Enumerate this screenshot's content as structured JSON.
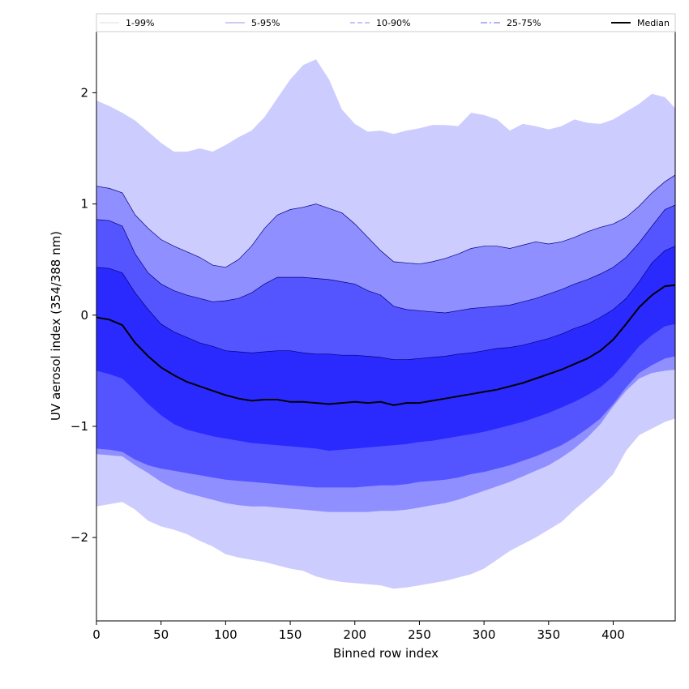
{
  "chart_data": {
    "type": "area",
    "xlabel": "Binned row index",
    "ylabel": "UV aerosol index (354/388 nm)",
    "xlim": [
      0,
      448
    ],
    "ylim": [
      -2.75,
      2.55
    ],
    "xticks": [
      0,
      50,
      100,
      150,
      200,
      250,
      300,
      350,
      400
    ],
    "yticks": [
      -2,
      -1,
      0,
      1,
      2
    ],
    "ytick_labels": [
      "−2",
      "−1",
      "0",
      "1",
      "2"
    ],
    "grid": false,
    "legend_placement": "top",
    "x": [
      0,
      10,
      20,
      30,
      40,
      50,
      60,
      70,
      80,
      90,
      100,
      110,
      120,
      130,
      140,
      150,
      160,
      170,
      180,
      190,
      200,
      210,
      220,
      230,
      240,
      250,
      260,
      270,
      280,
      290,
      300,
      310,
      320,
      330,
      340,
      350,
      360,
      370,
      380,
      390,
      400,
      410,
      420,
      430,
      440,
      448
    ],
    "bands": [
      {
        "name": "1-99%",
        "fill": "#ccccff",
        "line_color": "#ccccff",
        "line_style": "solid",
        "upper": [
          1.93,
          1.88,
          1.82,
          1.75,
          1.65,
          1.55,
          1.47,
          1.47,
          1.5,
          1.47,
          1.53,
          1.6,
          1.66,
          1.78,
          1.95,
          2.12,
          2.25,
          2.3,
          2.12,
          1.85,
          1.72,
          1.65,
          1.66,
          1.63,
          1.66,
          1.68,
          1.71,
          1.71,
          1.7,
          1.82,
          1.8,
          1.76,
          1.66,
          1.72,
          1.7,
          1.67,
          1.7,
          1.76,
          1.73,
          1.72,
          1.76,
          1.83,
          1.9,
          1.99,
          1.96,
          1.86
        ],
        "lower": [
          -1.72,
          -1.7,
          -1.68,
          -1.75,
          -1.85,
          -1.9,
          -1.93,
          -1.97,
          -2.03,
          -2.08,
          -2.15,
          -2.18,
          -2.2,
          -2.22,
          -2.25,
          -2.28,
          -2.3,
          -2.35,
          -2.38,
          -2.4,
          -2.41,
          -2.42,
          -2.43,
          -2.46,
          -2.45,
          -2.43,
          -2.41,
          -2.39,
          -2.36,
          -2.33,
          -2.28,
          -2.2,
          -2.12,
          -2.06,
          -2.0,
          -1.93,
          -1.86,
          -1.75,
          -1.65,
          -1.55,
          -1.43,
          -1.22,
          -1.08,
          -1.02,
          -0.96,
          -0.93
        ]
      },
      {
        "name": "5-95%",
        "fill": "#8f8fff",
        "line_color": "#000080",
        "line_style": "solid",
        "upper": [
          1.16,
          1.14,
          1.1,
          0.9,
          0.78,
          0.68,
          0.62,
          0.57,
          0.52,
          0.45,
          0.43,
          0.5,
          0.62,
          0.78,
          0.9,
          0.95,
          0.97,
          1.0,
          0.96,
          0.92,
          0.82,
          0.7,
          0.58,
          0.48,
          0.47,
          0.46,
          0.48,
          0.51,
          0.55,
          0.6,
          0.62,
          0.62,
          0.6,
          0.63,
          0.66,
          0.64,
          0.66,
          0.7,
          0.75,
          0.79,
          0.82,
          0.88,
          0.98,
          1.1,
          1.2,
          1.26
        ],
        "lower": [
          -1.25,
          -1.26,
          -1.27,
          -1.35,
          -1.42,
          -1.5,
          -1.56,
          -1.6,
          -1.63,
          -1.66,
          -1.69,
          -1.71,
          -1.72,
          -1.72,
          -1.73,
          -1.74,
          -1.75,
          -1.76,
          -1.77,
          -1.77,
          -1.77,
          -1.77,
          -1.76,
          -1.76,
          -1.75,
          -1.73,
          -1.71,
          -1.69,
          -1.66,
          -1.62,
          -1.58,
          -1.54,
          -1.5,
          -1.45,
          -1.4,
          -1.35,
          -1.28,
          -1.2,
          -1.1,
          -0.98,
          -0.82,
          -0.68,
          -0.57,
          -0.52,
          -0.5,
          -0.49
        ]
      },
      {
        "name": "10-90%",
        "fill": "#5555ff",
        "line_color": "#000080",
        "line_style": "dashed",
        "upper": [
          0.86,
          0.85,
          0.8,
          0.55,
          0.38,
          0.28,
          0.22,
          0.18,
          0.15,
          0.12,
          0.13,
          0.15,
          0.2,
          0.28,
          0.34,
          0.34,
          0.34,
          0.33,
          0.32,
          0.3,
          0.28,
          0.22,
          0.18,
          0.08,
          0.05,
          0.04,
          0.03,
          0.02,
          0.04,
          0.06,
          0.07,
          0.08,
          0.09,
          0.12,
          0.15,
          0.19,
          0.23,
          0.28,
          0.32,
          0.37,
          0.43,
          0.52,
          0.65,
          0.8,
          0.95,
          0.99
        ],
        "lower": [
          -1.2,
          -1.21,
          -1.23,
          -1.3,
          -1.35,
          -1.38,
          -1.4,
          -1.42,
          -1.44,
          -1.46,
          -1.48,
          -1.49,
          -1.5,
          -1.51,
          -1.52,
          -1.53,
          -1.54,
          -1.55,
          -1.55,
          -1.55,
          -1.55,
          -1.54,
          -1.53,
          -1.53,
          -1.52,
          -1.5,
          -1.49,
          -1.48,
          -1.46,
          -1.43,
          -1.41,
          -1.38,
          -1.35,
          -1.31,
          -1.27,
          -1.22,
          -1.17,
          -1.1,
          -1.02,
          -0.93,
          -0.8,
          -0.65,
          -0.52,
          -0.45,
          -0.39,
          -0.37
        ]
      },
      {
        "name": "25-75%",
        "fill": "#2a2aff",
        "line_color": "#000080",
        "line_style": "dashdot",
        "upper": [
          0.43,
          0.42,
          0.38,
          0.2,
          0.05,
          -0.08,
          -0.15,
          -0.2,
          -0.25,
          -0.28,
          -0.32,
          -0.33,
          -0.34,
          -0.33,
          -0.32,
          -0.32,
          -0.34,
          -0.35,
          -0.35,
          -0.36,
          -0.36,
          -0.37,
          -0.38,
          -0.4,
          -0.4,
          -0.39,
          -0.38,
          -0.37,
          -0.35,
          -0.34,
          -0.32,
          -0.3,
          -0.29,
          -0.27,
          -0.24,
          -0.21,
          -0.17,
          -0.12,
          -0.08,
          -0.02,
          0.05,
          0.15,
          0.3,
          0.47,
          0.58,
          0.62
        ],
        "lower": [
          -0.5,
          -0.53,
          -0.57,
          -0.68,
          -0.8,
          -0.9,
          -0.98,
          -1.03,
          -1.06,
          -1.09,
          -1.11,
          -1.13,
          -1.15,
          -1.16,
          -1.17,
          -1.18,
          -1.19,
          -1.2,
          -1.22,
          -1.21,
          -1.2,
          -1.19,
          -1.18,
          -1.17,
          -1.16,
          -1.14,
          -1.13,
          -1.11,
          -1.09,
          -1.07,
          -1.05,
          -1.02,
          -0.99,
          -0.96,
          -0.92,
          -0.88,
          -0.83,
          -0.78,
          -0.72,
          -0.65,
          -0.55,
          -0.42,
          -0.28,
          -0.18,
          -0.1,
          -0.08
        ]
      }
    ],
    "median": {
      "name": "Median",
      "color": "#000000",
      "values": [
        -0.02,
        -0.04,
        -0.09,
        -0.25,
        -0.37,
        -0.47,
        -0.54,
        -0.6,
        -0.64,
        -0.68,
        -0.72,
        -0.75,
        -0.77,
        -0.76,
        -0.76,
        -0.78,
        -0.78,
        -0.79,
        -0.8,
        -0.79,
        -0.78,
        -0.79,
        -0.78,
        -0.81,
        -0.79,
        -0.79,
        -0.77,
        -0.75,
        -0.73,
        -0.71,
        -0.69,
        -0.67,
        -0.64,
        -0.61,
        -0.57,
        -0.53,
        -0.49,
        -0.44,
        -0.39,
        -0.32,
        -0.22,
        -0.08,
        0.07,
        0.18,
        0.26,
        0.27
      ]
    }
  }
}
